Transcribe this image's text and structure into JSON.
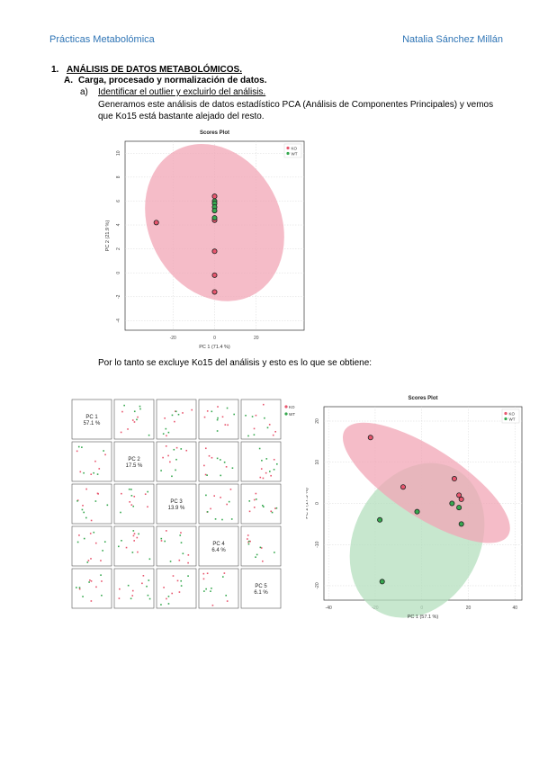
{
  "header": {
    "left": "Prácticas Metabolómica",
    "right": "Natalia Sánchez Millán"
  },
  "section1": {
    "number": "1.",
    "title": "ANÁLISIS DE DATOS METABOLÓMICOS."
  },
  "sectionA": {
    "letter": "A.",
    "title": "Carga, procesado y normalización de datos."
  },
  "itemA": {
    "letter": "a)",
    "title": "Identificar el outlier y excluirlo del análisis."
  },
  "paragraph1": "Generamos este análisis de datos estadístico PCA (Análisis de Componentes Principales) y vemos que Ko15 está bastante alejado del resto.",
  "paragraph2": "Por lo tanto se excluye Ko15 del análisis y esto es lo que se obtiene:",
  "colors": {
    "ko": "#e8566e",
    "wt": "#36a84f",
    "ko_ellipse": "#f1a5b6",
    "wt_ellipse": "#b4dfbd"
  },
  "chart_data": [
    {
      "type": "scatter",
      "title": "Scores Plot",
      "xlabel": "PC 1 (71.4 %)",
      "ylabel": "PC 2 (21.9 %)",
      "legend": [
        "KO",
        "WT"
      ],
      "legend_position": "top-right",
      "x_ticks": [
        "-20",
        "0",
        "20"
      ],
      "y_ticks": [
        "10",
        "8",
        "6",
        "4",
        "2",
        "0",
        "-2",
        "-4"
      ],
      "series": [
        {
          "name": "KO",
          "points": [
            [
              -28,
              4.2
            ],
            [
              0,
              6.4
            ],
            [
              0,
              4.4
            ],
            [
              0,
              1.8
            ],
            [
              0,
              -0.2
            ],
            [
              0,
              -1.6
            ]
          ]
        },
        {
          "name": "WT",
          "points": [
            [
              0,
              6.0
            ],
            [
              0,
              5.8
            ],
            [
              0,
              5.5
            ],
            [
              0,
              5.2
            ],
            [
              0,
              4.6
            ]
          ]
        }
      ]
    },
    {
      "type": "scatter_matrix",
      "diagonal_labels": [
        "PC 1\n57.1 %",
        "PC 2\n17.5 %",
        "PC 3\n13.9 %",
        "PC 4\n6.4 %",
        "PC 5\n6.1 %"
      ],
      "legend": [
        "KO",
        "WT"
      ]
    },
    {
      "type": "scatter",
      "title": "Scores Plot",
      "xlabel": "PC 1 (57.1 %)",
      "ylabel": "PC 2 (17.5 %)",
      "legend": [
        "KO",
        "WT"
      ],
      "legend_position": "top-right",
      "x_ticks": [
        "-40",
        "-20",
        "0",
        "20",
        "40"
      ],
      "y_ticks": [
        "20",
        "10",
        "0",
        "-10",
        "-20"
      ],
      "series": [
        {
          "name": "KO",
          "points": [
            [
              -22,
              16
            ],
            [
              -8,
              4
            ],
            [
              14,
              6
            ],
            [
              16,
              2
            ],
            [
              17,
              1
            ]
          ]
        },
        {
          "name": "WT",
          "points": [
            [
              -18,
              -4
            ],
            [
              -2,
              -2
            ],
            [
              13,
              0
            ],
            [
              16,
              -1
            ],
            [
              17,
              -5
            ],
            [
              -17,
              -19
            ]
          ]
        }
      ]
    }
  ]
}
